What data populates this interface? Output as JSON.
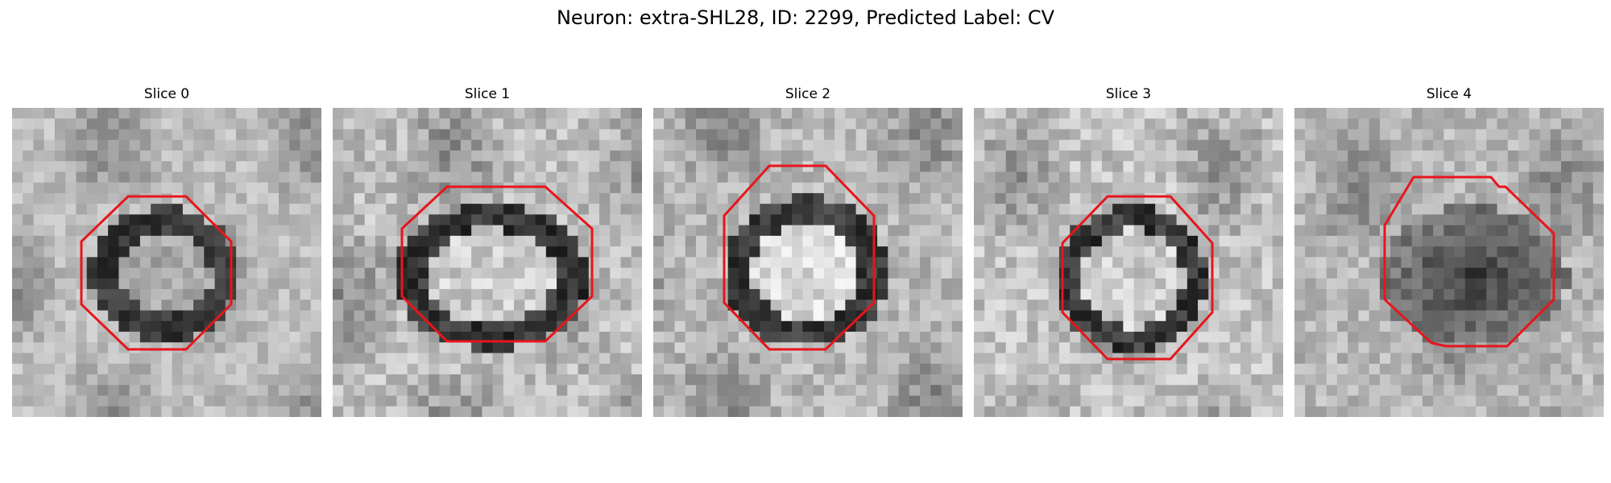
{
  "figure": {
    "title": "Neuron: extra-SHL28, ID: 2299, Predicted Label: CV"
  },
  "outline_color": "#e8151b",
  "slices": [
    {
      "title": "Slice 0",
      "tone": "dark-ring-with-light-center",
      "outline": "octagon"
    },
    {
      "title": "Slice 1",
      "tone": "dark-ring-with-light-center",
      "outline": "octagon"
    },
    {
      "title": "Slice 2",
      "tone": "dark-ring-with-light-center",
      "outline": "octagon"
    },
    {
      "title": "Slice 3",
      "tone": "dark-ring-with-light-center",
      "outline": "octagon"
    },
    {
      "title": "Slice 4",
      "tone": "dark-filled-blob",
      "outline": "octagon"
    }
  ]
}
